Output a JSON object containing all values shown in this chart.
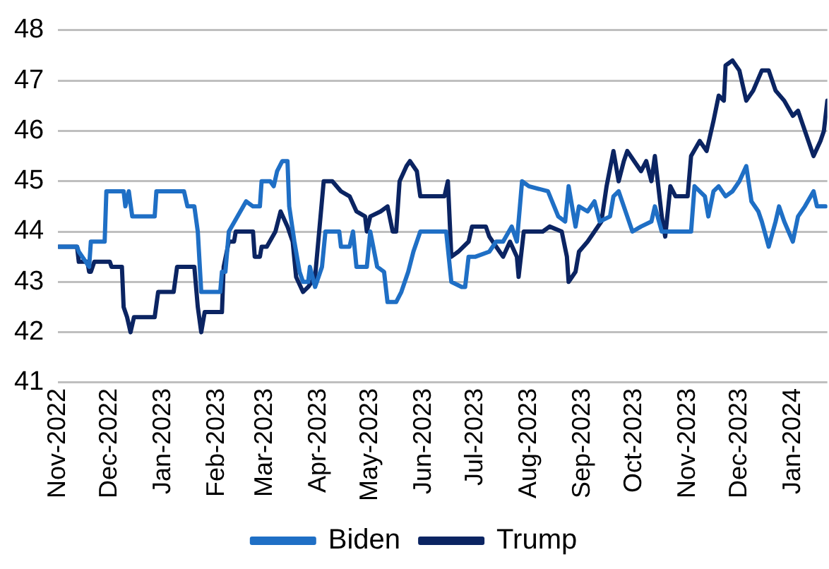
{
  "chart_data": {
    "type": "line",
    "xlim": [
      "2022-11-01",
      "2024-01-21"
    ],
    "ylim": [
      41,
      48
    ],
    "yticks": [
      41,
      42,
      43,
      44,
      45,
      46,
      47,
      48
    ],
    "xticks": [
      {
        "value": "2022-11-01",
        "label": "Nov-2022"
      },
      {
        "value": "2022-12-01",
        "label": "Dec-2022"
      },
      {
        "value": "2023-01-01",
        "label": "Jan-2023"
      },
      {
        "value": "2023-02-01",
        "label": "Feb-2023"
      },
      {
        "value": "2023-03-01",
        "label": "Mar-2023"
      },
      {
        "value": "2023-04-01",
        "label": "Apr-2023"
      },
      {
        "value": "2023-05-01",
        "label": "May-2023"
      },
      {
        "value": "2023-06-01",
        "label": "Jun-2023"
      },
      {
        "value": "2023-07-01",
        "label": "Jul-2023"
      },
      {
        "value": "2023-08-01",
        "label": "Aug-2023"
      },
      {
        "value": "2023-09-01",
        "label": "Sep-2023"
      },
      {
        "value": "2023-10-01",
        "label": "Oct-2023"
      },
      {
        "value": "2023-11-01",
        "label": "Nov-2023"
      },
      {
        "value": "2023-12-01",
        "label": "Dec-2023"
      },
      {
        "value": "2024-01-01",
        "label": "Jan-2024"
      }
    ],
    "grid": "y",
    "legend": "bottom",
    "marker": "none",
    "line_style": "solid",
    "series": [
      {
        "name": "Biden",
        "color": "#1f6fc5",
        "x": [
          "2022-11-01",
          "2022-11-12",
          "2022-11-13",
          "2022-11-19",
          "2022-11-20",
          "2022-11-28",
          "2022-11-29",
          "2022-12-09",
          "2022-12-10",
          "2022-12-12",
          "2022-12-14",
          "2022-12-27",
          "2022-12-28",
          "2023-01-13",
          "2023-01-15",
          "2023-01-19",
          "2023-01-21",
          "2023-01-23",
          "2023-02-03",
          "2023-02-04",
          "2023-02-06",
          "2023-02-08",
          "2023-02-18",
          "2023-02-22",
          "2023-02-26",
          "2023-02-27",
          "2023-03-04",
          "2023-03-06",
          "2023-03-08",
          "2023-03-11",
          "2023-03-14",
          "2023-03-15",
          "2023-03-18",
          "2023-03-21",
          "2023-03-23",
          "2023-03-26",
          "2023-03-27",
          "2023-03-30",
          "2023-04-03",
          "2023-04-05",
          "2023-04-13",
          "2023-04-14",
          "2023-04-19",
          "2023-04-21",
          "2023-04-23",
          "2023-04-29",
          "2023-05-01",
          "2023-05-05",
          "2023-05-09",
          "2023-05-11",
          "2023-05-16",
          "2023-05-19",
          "2023-05-23",
          "2023-05-26",
          "2023-05-30",
          "2023-06-14",
          "2023-06-17",
          "2023-06-23",
          "2023-06-25",
          "2023-06-27",
          "2023-07-01",
          "2023-07-09",
          "2023-07-13",
          "2023-07-17",
          "2023-07-22",
          "2023-07-25",
          "2023-07-28",
          "2023-08-01",
          "2023-08-12",
          "2023-08-18",
          "2023-08-22",
          "2023-08-24",
          "2023-08-28",
          "2023-08-30",
          "2023-09-04",
          "2023-09-08",
          "2023-09-11",
          "2023-09-17",
          "2023-09-19",
          "2023-09-22",
          "2023-09-27",
          "2023-09-30",
          "2023-10-05",
          "2023-10-11",
          "2023-10-13",
          "2023-10-17",
          "2023-10-23",
          "2023-11-03",
          "2023-11-05",
          "2023-11-11",
          "2023-11-13",
          "2023-11-16",
          "2023-11-19",
          "2023-11-23",
          "2023-11-27",
          "2023-12-01",
          "2023-12-05",
          "2023-12-08",
          "2023-12-12",
          "2023-12-14",
          "2023-12-18",
          "2023-12-22",
          "2023-12-24",
          "2023-12-27",
          "2024-01-01",
          "2024-01-04",
          "2024-01-08",
          "2024-01-13",
          "2024-01-15",
          "2024-01-20"
        ],
        "values": [
          43.7,
          43.7,
          43.6,
          43.3,
          43.8,
          43.8,
          44.8,
          44.8,
          44.5,
          44.8,
          44.3,
          44.3,
          44.8,
          44.8,
          44.5,
          44.5,
          44.0,
          42.8,
          42.8,
          43.2,
          43.2,
          44.0,
          44.6,
          44.5,
          44.5,
          45.0,
          45.0,
          44.9,
          45.2,
          45.4,
          45.4,
          44.5,
          43.8,
          43.2,
          43.0,
          43.0,
          43.3,
          42.9,
          43.3,
          44.0,
          44.0,
          43.7,
          43.7,
          44.0,
          43.3,
          43.3,
          44.0,
          43.3,
          43.2,
          42.6,
          42.6,
          42.8,
          43.2,
          43.6,
          44.0,
          44.0,
          43.0,
          42.9,
          42.9,
          43.5,
          43.5,
          43.6,
          43.8,
          43.8,
          44.1,
          43.8,
          45.0,
          44.9,
          44.8,
          44.3,
          44.2,
          44.9,
          44.1,
          44.5,
          44.4,
          44.6,
          44.2,
          44.3,
          44.7,
          44.8,
          44.3,
          44.0,
          44.1,
          44.2,
          44.5,
          44.0,
          44.0,
          44.0,
          44.9,
          44.7,
          44.3,
          44.8,
          44.9,
          44.7,
          44.8,
          45.0,
          45.3,
          44.6,
          44.4,
          44.2,
          43.7,
          44.2,
          44.5,
          44.2,
          43.8,
          44.3,
          44.5,
          44.8,
          44.5,
          44.5
        ]
      },
      {
        "name": "Trump",
        "color": "#0b2462",
        "x": [
          "2022-11-01",
          "2022-11-12",
          "2022-11-13",
          "2022-11-18",
          "2022-11-19",
          "2022-11-20",
          "2022-11-22",
          "2022-12-01",
          "2022-12-02",
          "2022-12-08",
          "2022-12-09",
          "2022-12-11",
          "2022-12-13",
          "2022-12-15",
          "2022-12-27",
          "2022-12-29",
          "2023-01-07",
          "2023-01-09",
          "2023-01-19",
          "2023-01-21",
          "2023-01-23",
          "2023-01-25",
          "2023-02-04",
          "2023-02-05",
          "2023-02-08",
          "2023-02-11",
          "2023-02-12",
          "2023-02-22",
          "2023-02-23",
          "2023-02-26",
          "2023-02-27",
          "2023-03-02",
          "2023-03-07",
          "2023-03-10",
          "2023-03-14",
          "2023-03-17",
          "2023-03-19",
          "2023-03-23",
          "2023-03-26",
          "2023-03-30",
          "2023-04-04",
          "2023-04-09",
          "2023-04-14",
          "2023-04-19",
          "2023-04-23",
          "2023-04-28",
          "2023-04-29",
          "2023-05-01",
          "2023-05-07",
          "2023-05-11",
          "2023-05-14",
          "2023-05-16",
          "2023-05-18",
          "2023-05-22",
          "2023-05-24",
          "2023-05-28",
          "2023-05-30",
          "2023-06-13",
          "2023-06-15",
          "2023-06-17",
          "2023-06-21",
          "2023-06-27",
          "2023-06-29",
          "2023-07-07",
          "2023-07-09",
          "2023-07-15",
          "2023-07-17",
          "2023-07-21",
          "2023-07-25",
          "2023-07-26",
          "2023-07-29",
          "2023-08-09",
          "2023-08-13",
          "2023-08-20",
          "2023-08-23",
          "2023-08-24",
          "2023-08-28",
          "2023-08-30",
          "2023-09-04",
          "2023-09-08",
          "2023-09-12",
          "2023-09-15",
          "2023-09-19",
          "2023-09-22",
          "2023-09-25",
          "2023-09-27",
          "2023-10-01",
          "2023-10-05",
          "2023-10-08",
          "2023-10-11",
          "2023-10-13",
          "2023-10-17",
          "2023-10-19",
          "2023-10-22",
          "2023-10-25",
          "2023-11-01",
          "2023-11-03",
          "2023-11-08",
          "2023-11-12",
          "2023-11-16",
          "2023-11-19",
          "2023-11-22",
          "2023-11-23",
          "2023-11-27",
          "2023-12-01",
          "2023-12-05",
          "2023-12-09",
          "2023-12-14",
          "2023-12-18",
          "2023-12-22",
          "2023-12-27",
          "2024-01-01",
          "2024-01-04",
          "2024-01-09",
          "2024-01-13",
          "2024-01-17",
          "2024-01-19",
          "2024-01-21"
        ],
        "values": [
          43.7,
          43.7,
          43.4,
          43.4,
          43.2,
          43.2,
          43.4,
          43.4,
          43.3,
          43.3,
          42.5,
          42.3,
          42.0,
          42.3,
          42.3,
          42.8,
          42.8,
          43.3,
          43.3,
          42.5,
          42.0,
          42.4,
          42.4,
          43.3,
          43.8,
          43.8,
          44.0,
          44.0,
          43.5,
          43.5,
          43.7,
          43.7,
          44.0,
          44.4,
          44.1,
          43.8,
          43.1,
          42.8,
          42.9,
          43.1,
          45.0,
          45.0,
          44.8,
          44.7,
          44.4,
          44.3,
          44.0,
          44.3,
          44.4,
          44.5,
          44.0,
          44.0,
          45.0,
          45.3,
          45.4,
          45.2,
          44.7,
          44.7,
          45.0,
          43.5,
          43.6,
          43.8,
          44.1,
          44.1,
          43.9,
          43.6,
          43.5,
          43.8,
          43.5,
          43.1,
          44.0,
          44.0,
          44.1,
          44.0,
          43.5,
          43.0,
          43.2,
          43.6,
          43.8,
          44.0,
          44.2,
          44.9,
          45.6,
          45.0,
          45.4,
          45.6,
          45.4,
          45.2,
          45.4,
          45.0,
          45.5,
          44.3,
          43.9,
          44.9,
          44.7,
          44.7,
          45.5,
          45.8,
          45.6,
          46.2,
          46.7,
          46.6,
          47.3,
          47.4,
          47.2,
          46.6,
          46.8,
          47.2,
          47.2,
          46.8,
          46.6,
          46.3,
          46.4,
          45.9,
          45.5,
          45.8,
          46.0,
          46.6
        ]
      }
    ]
  }
}
